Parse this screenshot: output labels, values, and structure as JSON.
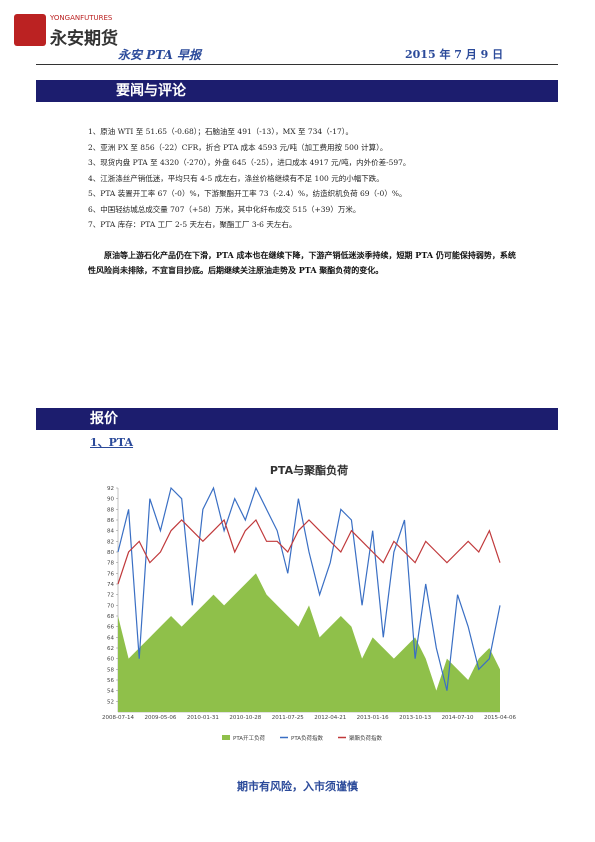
{
  "header": {
    "logo_en": "YONGANFUTURES",
    "logo_cn": "永安期货",
    "title": "永安 PTA 早报",
    "date": "2015 年 7 月 9 日"
  },
  "sections": [
    {
      "title": "要闻与评论"
    },
    {
      "title": "报价"
    }
  ],
  "news": {
    "items": [
      "1、原油 WTI 至 51.65（-0.68）；石脑油至 491（-13），MX 至 734（-17）。",
      "2、亚洲 PX 至 856（-22）CFR，折合 PTA 成本 4593 元/吨（加工费用按 500 计算）。",
      "3、现货内盘 PTA 至 4320（-270），外盘 645（-25），进口成本 4917 元/吨，内外价差-597。",
      "4、江浙涤丝产销低迷，平均只有 4-5 成左右，涤丝价格继续有不足 100 元的小幅下跌。",
      "5、PTA 装置开工率 67（-0）%，下游聚酯开工率 73（-2.4）%，纺造织机负荷 69（-0）%。",
      "6、中国轻纺城总成交量 707（+58）万米，其中化纤布成交 515（+39）万米。",
      "7、PTA 库存：PTA 工厂 2-5 天左右，聚酯工厂 3-6 天左右。"
    ],
    "comment": "原油等上游石化产品仍在下滑，PTA 成本也在继续下降，下游产销低迷淡季持续，短期 PTA 仍可能保持弱势，系统性风险尚未排除，不宜盲目抄底。后期继续关注原油走势及 PTA 聚酯负荷的变化。"
  },
  "subsection": "1、PTA",
  "chart_data": {
    "type": "line",
    "title": "PTA与聚酯负荷",
    "x": [
      "2008-07-14",
      null,
      null,
      null,
      "2009-05-06",
      null,
      null,
      null,
      "2010-01-31",
      null,
      null,
      null,
      "2010-10-28",
      null,
      null,
      null,
      "2011-07-25",
      null,
      null,
      null,
      "2012-04-21",
      null,
      null,
      null,
      "2013-01-16",
      null,
      null,
      null,
      "2013-10-13",
      null,
      null,
      null,
      "2014-07-10",
      null,
      null,
      null,
      "2015-04-06"
    ],
    "series": [
      {
        "name": "PTA开工负荷",
        "color": "#8fc04a",
        "kind": "area",
        "values": [
          68,
          60,
          62,
          64,
          66,
          68,
          66,
          68,
          70,
          72,
          70,
          72,
          74,
          76,
          72,
          70,
          68,
          66,
          70,
          64,
          66,
          68,
          66,
          60,
          64,
          62,
          60,
          62,
          64,
          60,
          54,
          60,
          58,
          56,
          60,
          62,
          58
        ]
      },
      {
        "name": "PTA负荷指数",
        "color": "#3a6fc4",
        "kind": "line",
        "values": [
          80,
          88,
          60,
          90,
          84,
          92,
          90,
          70,
          88,
          92,
          84,
          90,
          86,
          92,
          88,
          84,
          76,
          90,
          80,
          72,
          78,
          88,
          86,
          70,
          84,
          64,
          80,
          86,
          60,
          74,
          62,
          54,
          72,
          66,
          58,
          60,
          70
        ]
      },
      {
        "name": "聚酯负荷指数",
        "color": "#c0393b",
        "kind": "line",
        "values": [
          74,
          80,
          82,
          78,
          80,
          84,
          86,
          84,
          82,
          84,
          86,
          80,
          84,
          86,
          82,
          82,
          80,
          84,
          86,
          84,
          82,
          80,
          84,
          82,
          80,
          78,
          82,
          80,
          78,
          82,
          80,
          78,
          80,
          82,
          80,
          84,
          78
        ]
      }
    ],
    "ylim": [
      50,
      92
    ],
    "yticks": [
      52,
      54,
      56,
      58,
      60,
      62,
      64,
      66,
      68,
      70,
      72,
      74,
      76,
      78,
      80,
      82,
      84,
      86,
      88,
      90,
      92
    ]
  },
  "footer": "期市有风险，入市须谨慎"
}
